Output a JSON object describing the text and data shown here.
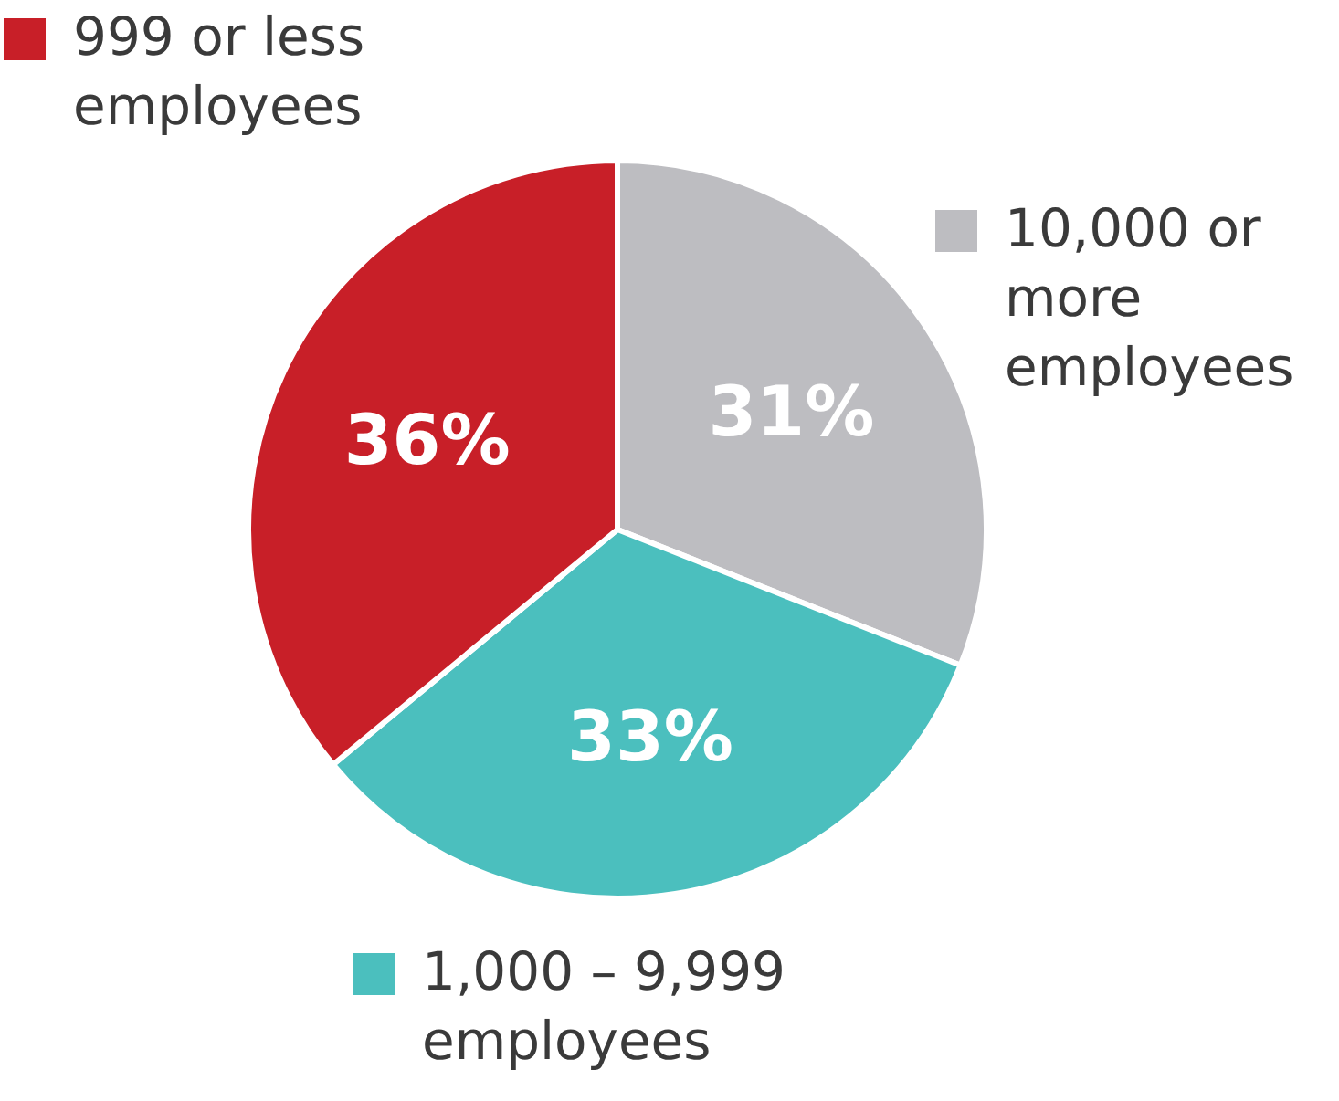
{
  "chart_data": {
    "type": "pie",
    "categories": [
      "10,000 or more employees",
      "1,000 – 9,999 employees",
      "999 or less employees"
    ],
    "values": [
      31,
      33,
      36
    ],
    "value_labels": [
      "31%",
      "33%",
      "36%"
    ],
    "colors": [
      "#bdbdc1",
      "#4bbfbe",
      "#c81f28"
    ],
    "legend": "right"
  }
}
